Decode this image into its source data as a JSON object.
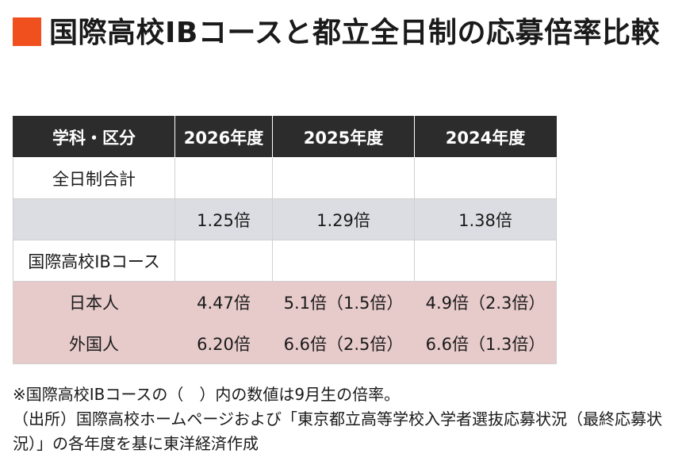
{
  "title": {
    "text": "国際高校IBコースと都立全日制の応募倍率比較",
    "marker_color": "#f0501e"
  },
  "table": {
    "headers": [
      "学科・区分",
      "2026年度",
      "2025年度",
      "2024年度"
    ],
    "rows": [
      [
        "全日制合計",
        "",
        "",
        ""
      ],
      [
        "",
        "1.25倍",
        "1.29倍",
        "1.38倍"
      ],
      [
        "国際高校IBコース",
        "",
        "",
        ""
      ],
      [
        "日本人",
        "4.47倍",
        "5.1倍（1.5倍）",
        "4.9倍（2.3倍）"
      ],
      [
        "外国人",
        "6.20倍",
        "6.6倍（2.5倍）",
        "6.6倍（1.3倍）"
      ]
    ]
  },
  "notes": [
    "※国際高校IBコースの（　）内の数値は9月生の倍率。",
    "（出所）国際高校ホームページおよび「東京都立高等学校入学者選抜応募状況（最終応募状況）」の各年度を基に東洋経済作成"
  ]
}
